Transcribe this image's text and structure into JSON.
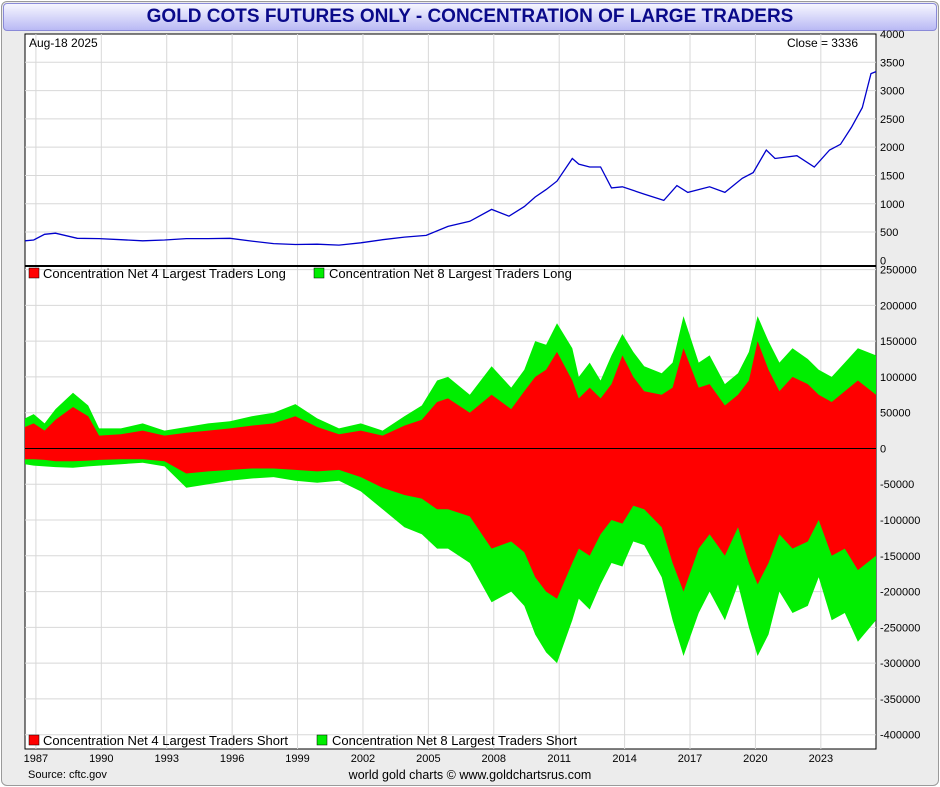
{
  "title": "GOLD COTS FUTURES ONLY - CONCENTRATION OF LARGE TRADERS",
  "date_label": "Aug-18  2025",
  "close_label": "Close = 3336",
  "source": "Source: cftc.gov",
  "credit": "world gold charts © www.goldchartsrus.com",
  "colors": {
    "price_line": "#0000cc",
    "top4": "#ff0000",
    "top8": "#00ee00",
    "grid": "#d8d8d8",
    "title_text": "#0a0a8a"
  },
  "chart_data": [
    {
      "type": "line",
      "title": "",
      "series": [
        {
          "name": "Gold price",
          "x": [
            1986.6,
            1987.0,
            1987.5,
            1988.0,
            1989.0,
            1990.0,
            1991.0,
            1992.0,
            1993.0,
            1994.0,
            1995.0,
            1996.0,
            1997.0,
            1998.0,
            1999.0,
            2000.0,
            2001.0,
            2002.0,
            2003.0,
            2004.0,
            2005.0,
            2006.0,
            2007.0,
            2008.0,
            2008.8,
            2009.5,
            2010.0,
            2010.5,
            2011.0,
            2011.7,
            2012.0,
            2012.5,
            2013.0,
            2013.5,
            2014.0,
            2015.0,
            2015.9,
            2016.5,
            2017.0,
            2018.0,
            2018.7,
            2019.5,
            2020.0,
            2020.6,
            2021.0,
            2022.0,
            2022.8,
            2023.5,
            2024.0,
            2024.5,
            2025.0,
            2025.4,
            2025.63
          ],
          "values": [
            345,
            360,
            460,
            480,
            390,
            385,
            365,
            345,
            360,
            385,
            385,
            390,
            340,
            295,
            280,
            285,
            270,
            310,
            365,
            410,
            440,
            600,
            690,
            900,
            780,
            950,
            1120,
            1250,
            1400,
            1800,
            1700,
            1650,
            1650,
            1280,
            1300,
            1170,
            1060,
            1320,
            1200,
            1300,
            1200,
            1450,
            1550,
            1950,
            1800,
            1850,
            1650,
            1950,
            2050,
            2350,
            2700,
            3300,
            3336
          ]
        }
      ],
      "xlim": [
        1986.6,
        2025.63
      ],
      "ylim": [
        -100,
        4000
      ],
      "yticks": [
        0,
        500,
        1000,
        1500,
        2000,
        2500,
        3000,
        3500,
        4000
      ]
    },
    {
      "type": "area",
      "title": "",
      "legend_top": [
        "Concentration Net 4 Largest Traders Long",
        "Concentration Net 8 Largest Traders Long"
      ],
      "legend_bottom": [
        "Concentration Net 4 Largest Traders Short",
        "Concentration Net 8 Largest Traders Short"
      ],
      "x": [
        1986.6,
        1987.0,
        1987.5,
        1988.0,
        1988.8,
        1989.5,
        1990.0,
        1991.0,
        1992.0,
        1993.0,
        1994.0,
        1995.0,
        1996.0,
        1997.0,
        1998.0,
        1999.0,
        2000.0,
        2001.0,
        2002.0,
        2003.0,
        2004.0,
        2004.8,
        2005.5,
        2006.0,
        2007.0,
        2008.0,
        2008.9,
        2009.5,
        2010.0,
        2010.5,
        2011.0,
        2011.7,
        2012.0,
        2012.5,
        2013.0,
        2013.5,
        2014.0,
        2014.5,
        2015.0,
        2015.8,
        2016.3,
        2016.8,
        2017.5,
        2018.0,
        2018.7,
        2019.3,
        2019.8,
        2020.2,
        2020.7,
        2021.2,
        2021.8,
        2022.5,
        2023.0,
        2023.6,
        2024.2,
        2024.8,
        2025.63
      ],
      "series": [
        {
          "name": "Concentration Net 4 Largest Traders Long",
          "values": [
            30000,
            35000,
            25000,
            40000,
            58000,
            45000,
            18000,
            20000,
            25000,
            18000,
            22000,
            25000,
            28000,
            32000,
            35000,
            45000,
            30000,
            20000,
            25000,
            18000,
            32000,
            40000,
            65000,
            70000,
            50000,
            75000,
            55000,
            80000,
            100000,
            110000,
            135000,
            95000,
            70000,
            85000,
            70000,
            90000,
            130000,
            100000,
            80000,
            75000,
            85000,
            140000,
            85000,
            90000,
            60000,
            75000,
            95000,
            150000,
            110000,
            80000,
            100000,
            90000,
            75000,
            65000,
            80000,
            95000,
            75000
          ]
        },
        {
          "name": "Concentration Net 8 Largest Traders Long",
          "values": [
            42000,
            48000,
            35000,
            55000,
            78000,
            60000,
            28000,
            28000,
            35000,
            25000,
            30000,
            35000,
            38000,
            45000,
            50000,
            62000,
            42000,
            28000,
            35000,
            25000,
            45000,
            60000,
            95000,
            100000,
            75000,
            115000,
            85000,
            110000,
            150000,
            145000,
            175000,
            140000,
            100000,
            120000,
            95000,
            130000,
            160000,
            135000,
            115000,
            105000,
            120000,
            185000,
            120000,
            130000,
            90000,
            105000,
            135000,
            185000,
            150000,
            120000,
            140000,
            125000,
            110000,
            100000,
            120000,
            140000,
            130000
          ]
        },
        {
          "name": "Concentration Net 4 Largest Traders Short",
          "values": [
            -15000,
            -15000,
            -16000,
            -18000,
            -18000,
            -17000,
            -16000,
            -15000,
            -15000,
            -18000,
            -35000,
            -32000,
            -30000,
            -28000,
            -28000,
            -30000,
            -32000,
            -30000,
            -40000,
            -55000,
            -65000,
            -70000,
            -85000,
            -85000,
            -95000,
            -140000,
            -130000,
            -145000,
            -180000,
            -200000,
            -210000,
            -160000,
            -140000,
            -150000,
            -120000,
            -100000,
            -105000,
            -80000,
            -85000,
            -110000,
            -160000,
            -200000,
            -140000,
            -120000,
            -150000,
            -110000,
            -160000,
            -190000,
            -160000,
            -120000,
            -140000,
            -130000,
            -100000,
            -150000,
            -140000,
            -170000,
            -150000
          ]
        },
        {
          "name": "Concentration Net 8 Largest Traders Short",
          "values": [
            -22000,
            -24000,
            -25000,
            -26000,
            -27000,
            -25000,
            -24000,
            -22000,
            -20000,
            -25000,
            -55000,
            -50000,
            -45000,
            -42000,
            -40000,
            -45000,
            -48000,
            -45000,
            -60000,
            -85000,
            -110000,
            -120000,
            -140000,
            -140000,
            -160000,
            -215000,
            -200000,
            -220000,
            -260000,
            -285000,
            -300000,
            -240000,
            -210000,
            -225000,
            -190000,
            -160000,
            -165000,
            -130000,
            -135000,
            -180000,
            -240000,
            -290000,
            -230000,
            -200000,
            -240000,
            -190000,
            -250000,
            -290000,
            -260000,
            -200000,
            -230000,
            -220000,
            -180000,
            -240000,
            -230000,
            -270000,
            -240000
          ]
        }
      ],
      "xlim": [
        1986.6,
        2025.63
      ],
      "ylim": [
        -420000,
        255000
      ],
      "yticks": [
        250000,
        200000,
        150000,
        100000,
        50000,
        0,
        -50000,
        -100000,
        -150000,
        -200000,
        -250000,
        -300000,
        -350000,
        -400000
      ],
      "xticks": [
        "1987",
        "1990",
        "1993",
        "1996",
        "1999",
        "2002",
        "2005",
        "2008",
        "2011",
        "2014",
        "2017",
        "2020",
        "2023"
      ]
    }
  ]
}
